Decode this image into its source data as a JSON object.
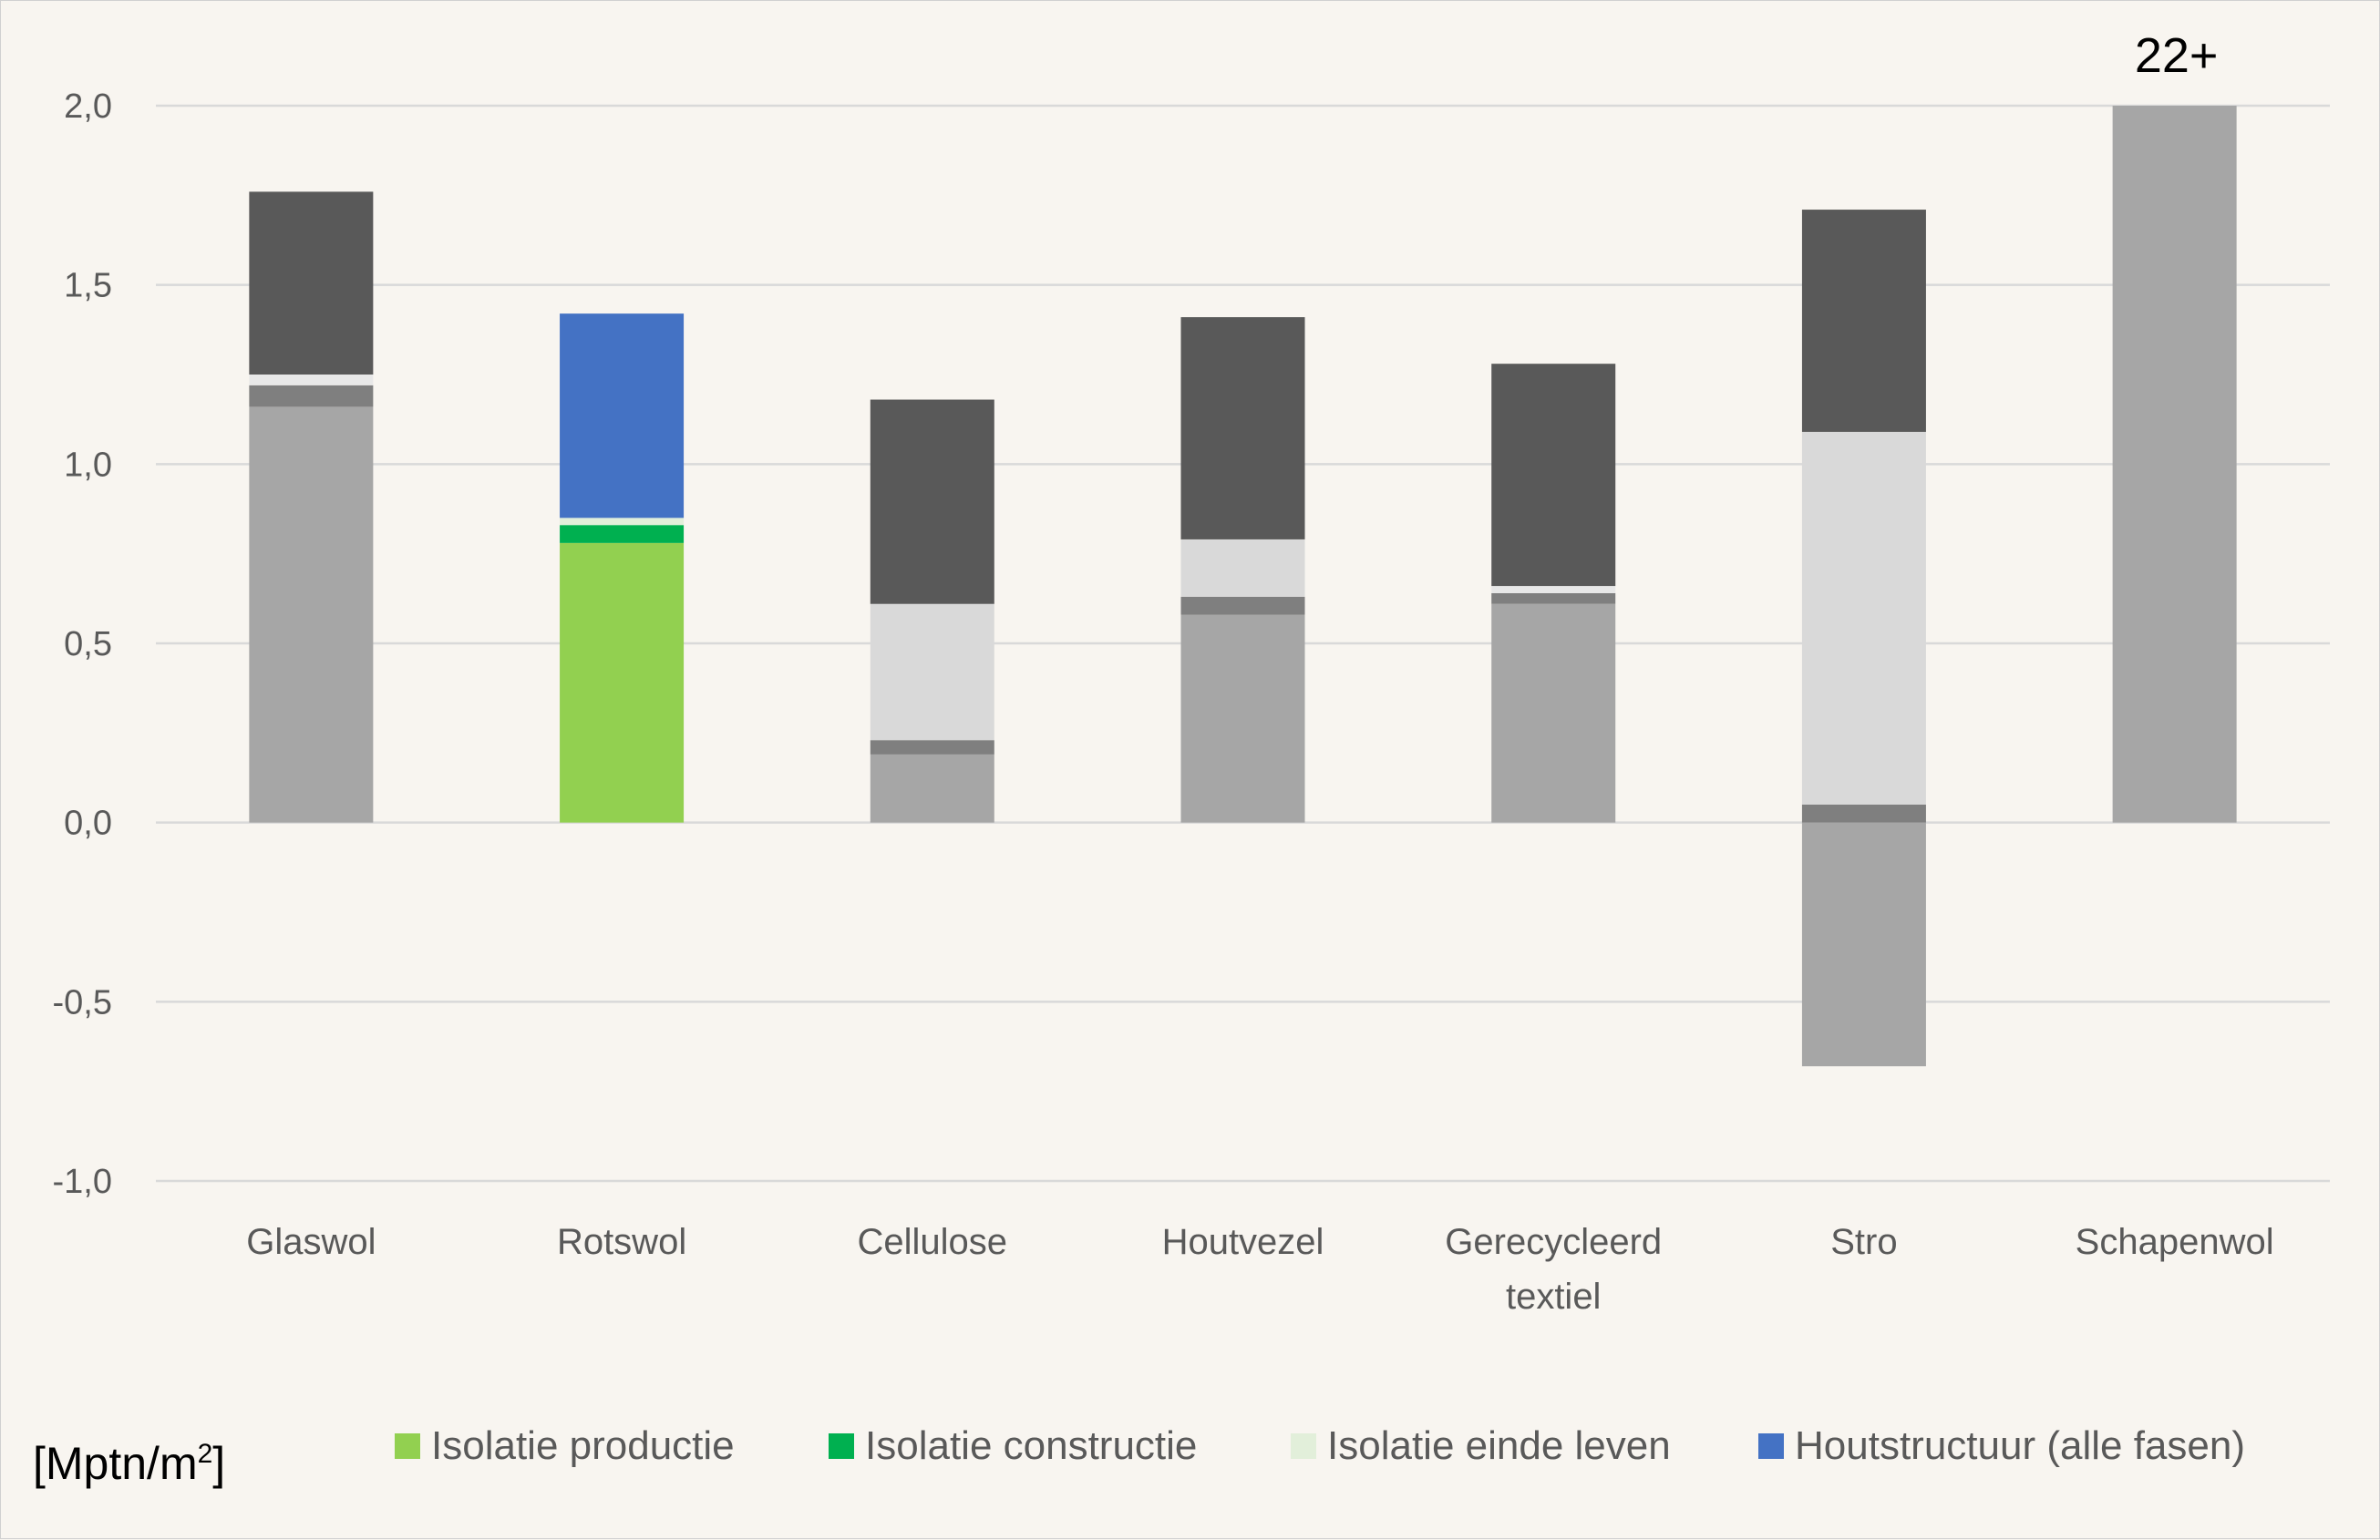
{
  "chart_data": {
    "type": "bar",
    "stacked": true,
    "unit_label": "[Mptn/m",
    "unit_sup": "2",
    "unit_close": "]",
    "categories": [
      [
        "Glaswol"
      ],
      [
        "Rotswol"
      ],
      [
        "Cellulose"
      ],
      [
        "Houtvezel"
      ],
      [
        "Gerecycleerd",
        "textiel"
      ],
      [
        "Stro"
      ],
      [
        "Schapenwol"
      ]
    ],
    "ylim": [
      -1.0,
      2.0
    ],
    "yticks": [
      2.0,
      1.5,
      1.0,
      0.5,
      0.0,
      -0.5,
      -1.0
    ],
    "ytick_labels": [
      "2,0",
      "1,5",
      "1,0",
      "0,5",
      "0,0",
      "-0,5",
      "-1,0"
    ],
    "grid": true,
    "legend_position": "bottom",
    "segments": [
      [
        {
          "from": 0,
          "to": 1.16,
          "color": "#a6a6a6"
        },
        {
          "from": 1.16,
          "to": 1.22,
          "color": "#7f7f7f"
        },
        {
          "from": 1.22,
          "to": 1.25,
          "color": "#e8e8e8"
        },
        {
          "from": 1.25,
          "to": 1.76,
          "color": "#595959"
        }
      ],
      [
        {
          "from": 0,
          "to": 0.78,
          "color": "#92d050"
        },
        {
          "from": 0.78,
          "to": 0.83,
          "color": "#00b050"
        },
        {
          "from": 0.83,
          "to": 0.85,
          "color": "#e2efda"
        },
        {
          "from": 0.85,
          "to": 1.42,
          "color": "#4472c4"
        }
      ],
      [
        {
          "from": 0,
          "to": 0.19,
          "color": "#a6a6a6"
        },
        {
          "from": 0.19,
          "to": 0.23,
          "color": "#7f7f7f"
        },
        {
          "from": 0.23,
          "to": 0.61,
          "color": "#d9d9d9"
        },
        {
          "from": 0.61,
          "to": 1.18,
          "color": "#595959"
        }
      ],
      [
        {
          "from": 0,
          "to": 0.58,
          "color": "#a6a6a6"
        },
        {
          "from": 0.58,
          "to": 0.63,
          "color": "#7f7f7f"
        },
        {
          "from": 0.63,
          "to": 0.79,
          "color": "#d9d9d9"
        },
        {
          "from": 0.79,
          "to": 1.41,
          "color": "#595959"
        }
      ],
      [
        {
          "from": 0,
          "to": 0.61,
          "color": "#a6a6a6"
        },
        {
          "from": 0.61,
          "to": 0.64,
          "color": "#7f7f7f"
        },
        {
          "from": 0.64,
          "to": 0.66,
          "color": "#e8e8e8"
        },
        {
          "from": 0.66,
          "to": 1.28,
          "color": "#595959"
        }
      ],
      [
        {
          "from": -0.68,
          "to": 0,
          "color": "#a6a6a6"
        },
        {
          "from": 0,
          "to": 0.05,
          "color": "#7f7f7f"
        },
        {
          "from": 0.05,
          "to": 1.09,
          "color": "#d9d9d9"
        },
        {
          "from": 1.09,
          "to": 1.71,
          "color": "#595959"
        }
      ],
      [
        {
          "from": 0,
          "to": 2.0,
          "color": "#a6a6a6"
        }
      ]
    ],
    "annotations": [
      {
        "category_index": 6,
        "text": "22+"
      }
    ],
    "legend": [
      {
        "name": "Isolatie productie",
        "color": "#92d050"
      },
      {
        "name": "Isolatie constructie",
        "color": "#00b050"
      },
      {
        "name": "Isolatie einde leven",
        "color": "#e2efda"
      },
      {
        "name": "Houtstructuur (alle fasen)",
        "color": "#4472c4"
      }
    ]
  }
}
